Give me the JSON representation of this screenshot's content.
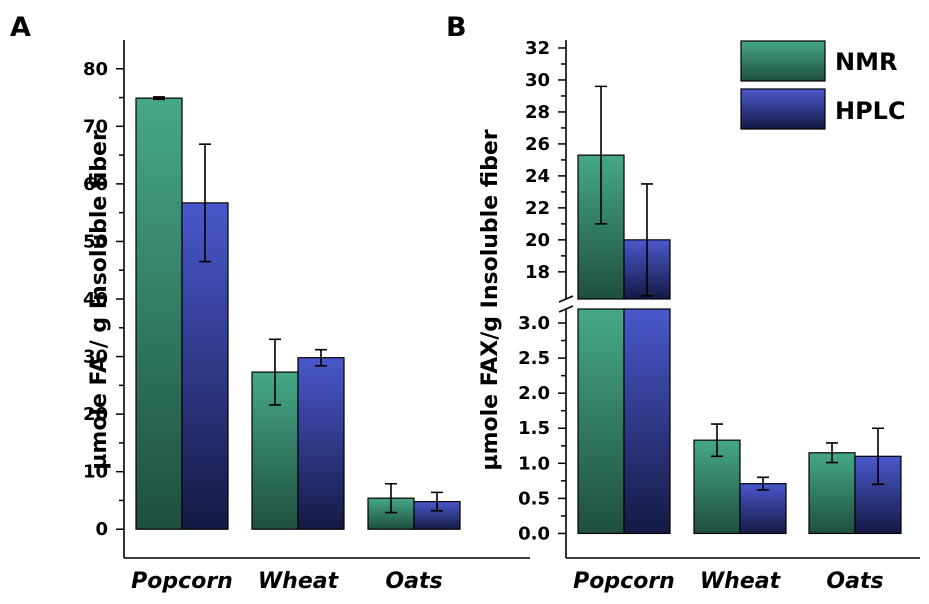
{
  "colors": {
    "nmr_top": "#46a888",
    "nmr_bottom": "#1f4f3f",
    "hplc_top": "#4a58cc",
    "hplc_bottom": "#141a44"
  },
  "chart_data": [
    {
      "panel": "A",
      "type": "bar",
      "ylabel": "µmole FA / g Insoluble fiber",
      "xlabel": "",
      "categories": [
        "Popcorn",
        "Wheat",
        "Oats"
      ],
      "ylim": [
        -5,
        85
      ],
      "yticks": [
        "0",
        "10",
        "20",
        "30",
        "40",
        "50",
        "60",
        "70",
        "80"
      ],
      "ytick_values": [
        0,
        10,
        20,
        30,
        40,
        50,
        60,
        70,
        80
      ],
      "series": [
        {
          "name": "NMR",
          "values": [
            74.9,
            27.3,
            5.4
          ],
          "errors": [
            0.2,
            5.7,
            2.5
          ]
        },
        {
          "name": "HPLC",
          "values": [
            56.7,
            29.8,
            4.8
          ],
          "errors": [
            10.2,
            1.4,
            1.6
          ]
        }
      ]
    },
    {
      "panel": "B",
      "type": "bar",
      "ylabel": "µmole FAX/g Insoluble fiber",
      "xlabel": "",
      "categories": [
        "Popcorn",
        "Wheat",
        "Oats"
      ],
      "broken_axis": true,
      "lower_ylim": [
        -0.35,
        3.2
      ],
      "upper_ylim": [
        16.3,
        32.5
      ],
      "lower_yticks": [
        "0.0",
        "0.5",
        "1.0",
        "1.5",
        "2.0",
        "2.5",
        "3.0"
      ],
      "lower_ytick_values": [
        0.0,
        0.5,
        1.0,
        1.5,
        2.0,
        2.5,
        3.0
      ],
      "upper_yticks": [
        "18",
        "20",
        "22",
        "24",
        "26",
        "28",
        "30",
        "32"
      ],
      "upper_ytick_values": [
        18,
        20,
        22,
        24,
        26,
        28,
        30,
        32
      ],
      "legend": [
        "NMR",
        "HPLC"
      ],
      "legend_position": "top-right",
      "series": [
        {
          "name": "NMR",
          "values": [
            25.3,
            1.33,
            1.15
          ],
          "errors": [
            4.3,
            0.23,
            0.14
          ]
        },
        {
          "name": "HPLC",
          "values": [
            20.0,
            0.71,
            1.1
          ],
          "errors": [
            3.5,
            0.09,
            0.4
          ]
        }
      ]
    }
  ]
}
